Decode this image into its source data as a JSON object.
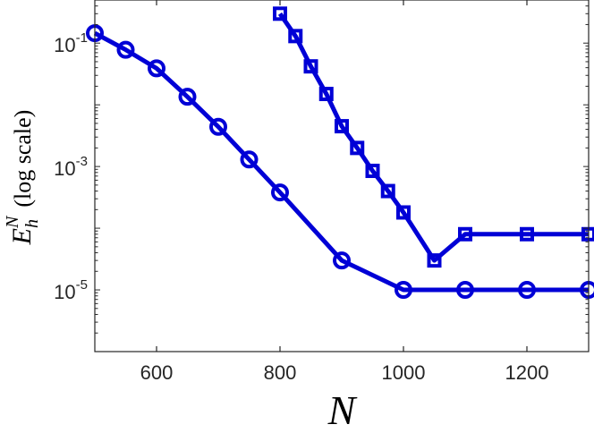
{
  "chart_data": {
    "type": "line",
    "xlabel": "N",
    "ylabel_main": "E",
    "ylabel_sub": "h",
    "ylabel_sup": "N",
    "ylabel_suffix": "(log scale)",
    "xlim": [
      500,
      1300
    ],
    "ylim": [
      1e-06,
      0.5
    ],
    "yscale": "log",
    "x_ticks": [
      600,
      800,
      1000,
      1200
    ],
    "x_tick_labels": [
      "600",
      "800",
      "1000",
      "1200"
    ],
    "y_ticks": [
      0.1,
      0.001,
      1e-05
    ],
    "y_tick_labels": [
      {
        "base": "10",
        "exp": "-1"
      },
      {
        "base": "10",
        "exp": "-3"
      },
      {
        "base": "10",
        "exp": "-5"
      }
    ],
    "grid": false,
    "series": [
      {
        "marker": "circle",
        "color": "#0000d6",
        "x": [
          500,
          550,
          600,
          650,
          700,
          750,
          800,
          900,
          1000,
          1100,
          1200,
          1300
        ],
        "y": [
          0.145,
          0.078,
          0.039,
          0.0135,
          0.0044,
          0.0013,
          0.00038,
          3e-05,
          1e-05,
          1e-05,
          1e-05,
          1e-05
        ]
      },
      {
        "marker": "square",
        "color": "#0000d6",
        "x": [
          800,
          825,
          850,
          875,
          900,
          925,
          950,
          975,
          1000,
          1050,
          1100,
          1200,
          1300
        ],
        "y": [
          0.3,
          0.13,
          0.042,
          0.015,
          0.0045,
          0.002,
          0.00085,
          0.0004,
          0.00018,
          3e-05,
          8e-05,
          8e-05,
          8e-05
        ]
      }
    ]
  }
}
